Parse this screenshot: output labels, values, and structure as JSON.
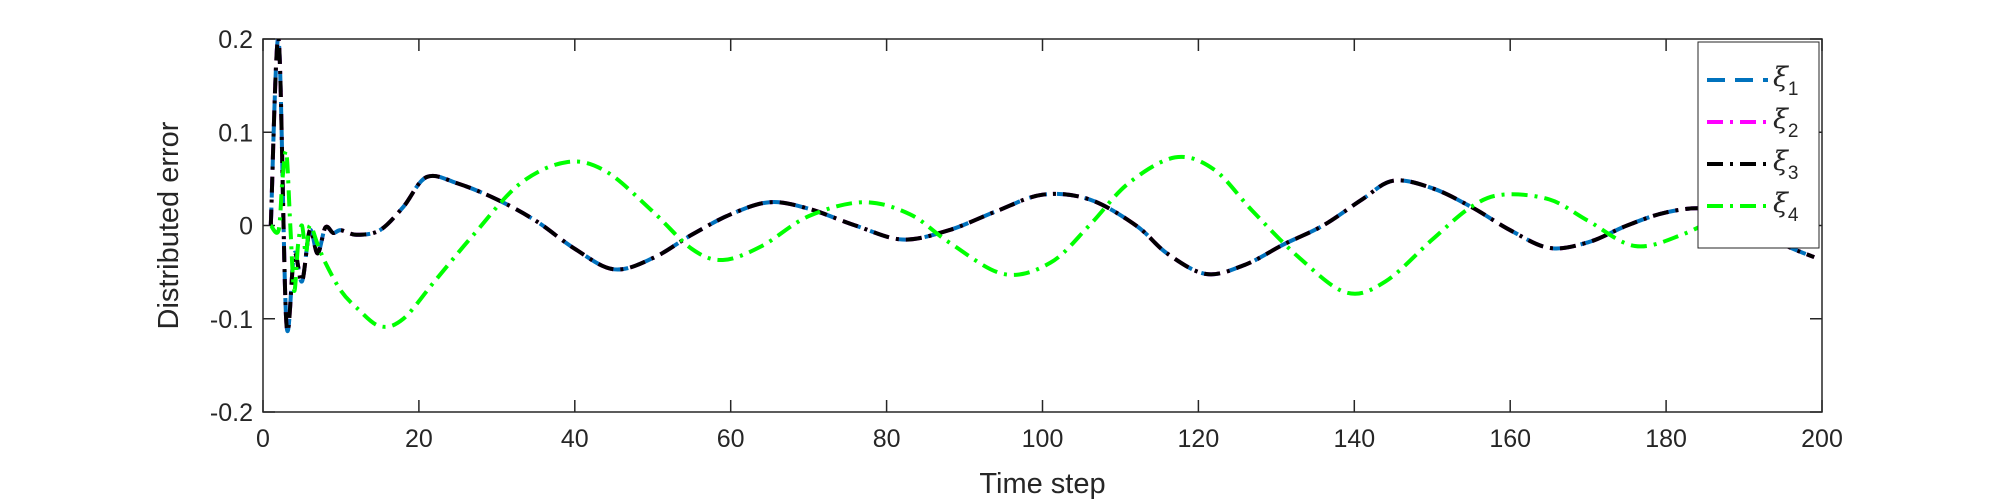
{
  "chart_data": {
    "type": "line",
    "xlabel": "Time step",
    "ylabel": "Distributed error",
    "xlim": [
      0,
      200
    ],
    "ylim": [
      -0.2,
      0.2
    ],
    "xticks": [
      0,
      20,
      40,
      60,
      80,
      100,
      120,
      140,
      160,
      180,
      200
    ],
    "xtick_labels": [
      "0",
      "20",
      "40",
      "60",
      "80",
      "100",
      "120",
      "140",
      "160",
      "180",
      "200"
    ],
    "yticks": [
      -0.2,
      -0.1,
      0,
      0.1,
      0.2
    ],
    "ytick_labels": [
      "-0.2",
      "-0.1",
      "0",
      "0.1",
      "0.2"
    ],
    "grid": false,
    "legend_position": "top-right",
    "series": [
      {
        "name": "ξ1",
        "name_base": "ξ",
        "name_sub": "1",
        "color": "#0072BD",
        "dash": "dashed",
        "x": [
          1,
          2,
          3,
          4,
          5,
          6,
          7,
          8,
          9,
          10,
          12,
          15,
          18,
          21,
          25,
          30,
          35,
          40,
          45,
          50,
          55,
          60,
          65,
          70,
          76,
          82,
          88,
          94,
          100,
          106,
          112,
          116,
          121,
          126,
          131,
          136,
          141,
          145,
          150,
          155,
          160,
          165,
          170,
          175,
          180,
          185,
          190,
          195,
          199
        ],
        "y": [
          0.0,
          0.2,
          -0.105,
          -0.03,
          -0.06,
          -0.005,
          -0.03,
          -0.002,
          -0.008,
          -0.005,
          -0.01,
          -0.005,
          0.02,
          0.052,
          0.045,
          0.028,
          0.005,
          -0.025,
          -0.047,
          -0.035,
          -0.01,
          0.012,
          0.025,
          0.018,
          0.0,
          -0.015,
          -0.005,
          0.015,
          0.033,
          0.028,
          0.0,
          -0.03,
          -0.052,
          -0.042,
          -0.02,
          0.0,
          0.028,
          0.048,
          0.04,
          0.02,
          -0.005,
          -0.024,
          -0.018,
          0.0,
          0.014,
          0.018,
          0.005,
          -0.02,
          -0.034
        ]
      },
      {
        "name": "ξ2",
        "name_base": "ξ",
        "name_sub": "2",
        "color": "#FF00FF",
        "dash": "dashdot",
        "x": [
          1,
          2,
          3,
          4,
          5,
          6,
          7,
          8,
          9,
          10,
          12,
          15,
          18,
          21,
          25,
          30,
          35,
          40,
          45,
          50,
          55,
          60,
          65,
          70,
          76,
          82,
          88,
          94,
          100,
          106,
          112,
          116,
          121,
          126,
          131,
          136,
          141,
          145,
          150,
          155,
          160,
          165,
          170,
          175,
          180,
          185,
          190,
          195,
          199
        ],
        "y": [
          0.0,
          0.2,
          -0.105,
          -0.03,
          -0.06,
          -0.005,
          -0.03,
          -0.002,
          -0.008,
          -0.005,
          -0.01,
          -0.005,
          0.02,
          0.052,
          0.045,
          0.028,
          0.005,
          -0.025,
          -0.047,
          -0.035,
          -0.01,
          0.012,
          0.025,
          0.018,
          0.0,
          -0.015,
          -0.005,
          0.015,
          0.033,
          0.028,
          0.0,
          -0.03,
          -0.052,
          -0.042,
          -0.02,
          0.0,
          0.028,
          0.048,
          0.04,
          0.02,
          -0.005,
          -0.024,
          -0.018,
          0.0,
          0.014,
          0.018,
          0.005,
          -0.02,
          -0.034
        ]
      },
      {
        "name": "ξ3",
        "name_base": "ξ",
        "name_sub": "3",
        "color": "#000000",
        "dash": "dashdot",
        "x": [
          1,
          2,
          3,
          4,
          5,
          6,
          7,
          8,
          9,
          10,
          12,
          15,
          18,
          21,
          25,
          30,
          35,
          40,
          45,
          50,
          55,
          60,
          65,
          70,
          76,
          82,
          88,
          94,
          100,
          106,
          112,
          116,
          121,
          126,
          131,
          136,
          141,
          145,
          150,
          155,
          160,
          165,
          170,
          175,
          180,
          185,
          190,
          195,
          199
        ],
        "y": [
          0.0,
          0.2,
          -0.105,
          -0.03,
          -0.06,
          -0.005,
          -0.03,
          -0.002,
          -0.008,
          -0.005,
          -0.01,
          -0.005,
          0.02,
          0.052,
          0.045,
          0.028,
          0.005,
          -0.025,
          -0.047,
          -0.035,
          -0.01,
          0.012,
          0.025,
          0.018,
          0.0,
          -0.015,
          -0.005,
          0.015,
          0.033,
          0.028,
          0.0,
          -0.03,
          -0.052,
          -0.042,
          -0.02,
          0.0,
          0.028,
          0.048,
          0.04,
          0.02,
          -0.005,
          -0.024,
          -0.018,
          0.0,
          0.014,
          0.018,
          0.005,
          -0.02,
          -0.034
        ]
      },
      {
        "name": "ξ4",
        "name_base": "ξ",
        "name_sub": "4",
        "color": "#00FF00",
        "dash": "dashdot",
        "x": [
          1,
          2,
          2.5,
          3,
          3.5,
          4,
          4.5,
          5,
          5.5,
          6,
          7,
          8,
          10,
          12,
          15,
          18,
          22,
          27,
          33,
          39,
          44,
          50,
          55,
          59,
          64,
          70,
          77,
          83,
          88,
          95,
          101,
          106,
          111,
          117,
          122,
          127,
          133,
          139,
          144,
          150,
          155,
          159,
          165,
          170,
          176,
          182,
          188,
          194,
          199
        ],
        "y": [
          0.0,
          -0.005,
          0.05,
          0.078,
          0.0,
          -0.07,
          -0.02,
          0.0,
          -0.03,
          0.0,
          -0.02,
          -0.04,
          -0.07,
          -0.088,
          -0.108,
          -0.1,
          -0.06,
          -0.01,
          0.045,
          0.068,
          0.058,
          0.015,
          -0.025,
          -0.037,
          -0.022,
          0.01,
          0.025,
          0.012,
          -0.018,
          -0.052,
          -0.04,
          0.0,
          0.045,
          0.073,
          0.06,
          0.015,
          -0.035,
          -0.072,
          -0.06,
          -0.015,
          0.02,
          0.033,
          0.028,
          0.005,
          -0.022,
          -0.01,
          0.015,
          0.04,
          0.045
        ]
      }
    ]
  }
}
